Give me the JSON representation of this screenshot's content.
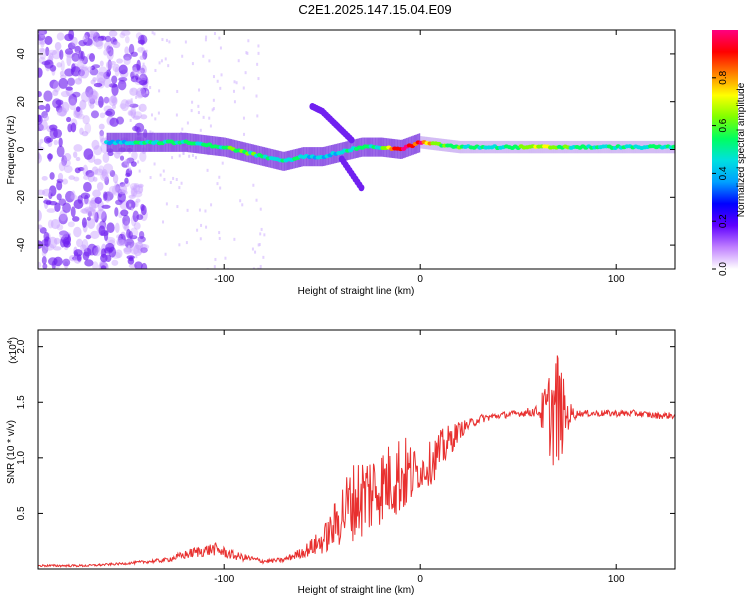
{
  "title": "C2E1.2025.147.15.04.E09",
  "colors": {
    "snr_line": "#e8302f",
    "spectrum_band": "#8040e0",
    "colorbar": [
      "#ffffff",
      "#c080ff",
      "#6000ff",
      "#0000ff",
      "#00a0ff",
      "#00e0e0",
      "#00ff60",
      "#80ff00",
      "#ffff00",
      "#ff8000",
      "#ff0000",
      "#ff0080"
    ]
  },
  "chart_data": [
    {
      "type": "heatmap",
      "name": "spectrogram",
      "xlabel": "Height of straight line (km)",
      "ylabel": "Frequency (Hz)",
      "xlim": [
        -195,
        130
      ],
      "ylim": [
        -50,
        50
      ],
      "x_ticks": [
        -100,
        0,
        100
      ],
      "x_tick_labels": [
        "-100",
        "0",
        "100"
      ],
      "y_ticks": [
        -40,
        -20,
        0,
        20,
        40
      ],
      "y_tick_labels": [
        "-40",
        "-20",
        "0",
        "20",
        "40"
      ],
      "colorbar": {
        "label": "Normalized spectral amplitude",
        "range": [
          0,
          1
        ],
        "ticks": [
          0.0,
          0.2,
          0.4,
          0.6,
          0.8
        ],
        "tick_labels": [
          "0.0",
          "0.2",
          "0.4",
          "0.6",
          "0.8"
        ]
      },
      "ridge": {
        "x": [
          -160,
          -150,
          -140,
          -130,
          -120,
          -110,
          -100,
          -90,
          -80,
          -70,
          -60,
          -50,
          -40,
          -30,
          -20,
          -10,
          0,
          10,
          20,
          40,
          60,
          80,
          100,
          130
        ],
        "freq": [
          3,
          3,
          3,
          3,
          3,
          2,
          1,
          -1,
          -3,
          -5,
          -3,
          -3,
          -1,
          1,
          1,
          0,
          3,
          2,
          1,
          1,
          1,
          1,
          1,
          1
        ],
        "amplitude": [
          0.4,
          0.45,
          0.5,
          0.5,
          0.5,
          0.5,
          0.55,
          0.6,
          0.5,
          0.55,
          0.5,
          0.4,
          0.45,
          0.5,
          0.55,
          0.95,
          0.9,
          0.6,
          0.55,
          0.5,
          0.7,
          0.5,
          0.5,
          0.5
        ]
      },
      "branches": [
        {
          "x": [
            -55,
            -50,
            -45,
            -40,
            -35
          ],
          "freq": [
            18,
            16,
            12,
            8,
            4
          ]
        },
        {
          "x": [
            -40,
            -35,
            -30
          ],
          "freq": [
            -4,
            -10,
            -16
          ]
        }
      ],
      "noise_region": {
        "x": [
          -195,
          -150
        ],
        "freq": [
          -50,
          50
        ]
      }
    },
    {
      "type": "line",
      "name": "snr",
      "xlabel": "Height of straight line (km)",
      "ylabel": "SNR (10 * v/v)",
      "y_multiplier": "(x10",
      "y_multiplier_exp": "4",
      "y_multiplier_close": ")",
      "xlim": [
        -195,
        130
      ],
      "ylim": [
        0,
        2.15
      ],
      "x_ticks": [
        -100,
        0,
        100
      ],
      "x_tick_labels": [
        "-100",
        "0",
        "100"
      ],
      "y_ticks": [
        0.5,
        1.0,
        1.5,
        2.0
      ],
      "y_tick_labels": [
        "0.5",
        "1.0",
        "1.5",
        "2.0"
      ],
      "envelope": {
        "x": [
          -195,
          -170,
          -150,
          -130,
          -115,
          -105,
          -95,
          -80,
          -70,
          -60,
          -50,
          -45,
          -40,
          -35,
          -30,
          -25,
          -20,
          -15,
          -10,
          -5,
          0,
          5,
          10,
          15,
          20,
          25,
          30,
          40,
          50,
          60,
          65,
          70,
          75,
          80,
          90,
          100,
          110,
          120,
          130
        ],
        "y": [
          0.03,
          0.03,
          0.05,
          0.08,
          0.15,
          0.18,
          0.12,
          0.07,
          0.08,
          0.15,
          0.25,
          0.35,
          0.5,
          0.6,
          0.65,
          0.7,
          0.75,
          0.8,
          0.85,
          0.85,
          0.88,
          0.95,
          1.05,
          1.15,
          1.25,
          1.3,
          1.35,
          1.38,
          1.4,
          1.42,
          1.4,
          1.42,
          1.38,
          1.4,
          1.4,
          1.4,
          1.4,
          1.38,
          1.38
        ],
        "noise": [
          0.01,
          0.01,
          0.01,
          0.02,
          0.05,
          0.06,
          0.04,
          0.02,
          0.02,
          0.05,
          0.12,
          0.18,
          0.3,
          0.35,
          0.4,
          0.4,
          0.35,
          0.35,
          0.4,
          0.3,
          0.15,
          0.2,
          0.2,
          0.15,
          0.08,
          0.05,
          0.04,
          0.03,
          0.03,
          0.05,
          0.35,
          0.6,
          0.15,
          0.03,
          0.03,
          0.03,
          0.03,
          0.03,
          0.03
        ]
      }
    }
  ]
}
